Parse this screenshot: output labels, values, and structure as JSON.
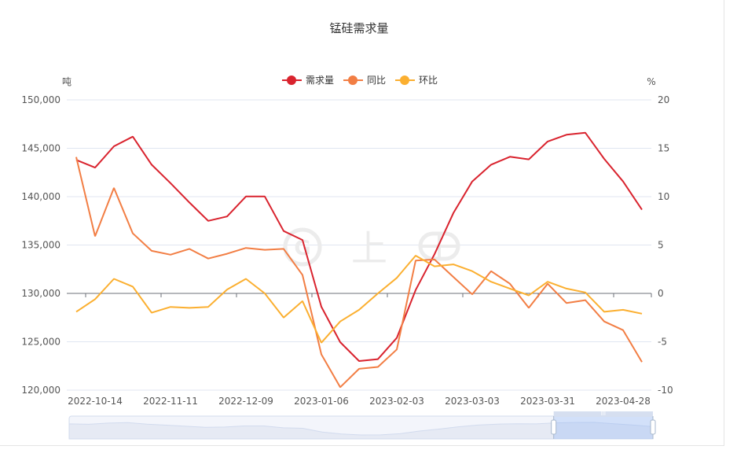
{
  "title": "锰硅需求量",
  "legend": [
    {
      "name": "需求量",
      "color": "#d9232e"
    },
    {
      "name": "同比",
      "color": "#f27e44"
    },
    {
      "name": "环比",
      "color": "#fbaf30"
    }
  ],
  "axes": {
    "left_unit": "吨",
    "right_unit": "%",
    "left_ticks": [
      "150,000",
      "145,000",
      "140,000",
      "135,000",
      "130,000",
      "125,000",
      "120,000"
    ],
    "right_ticks": [
      "20",
      "15",
      "10",
      "5",
      "0",
      "-5",
      "-10"
    ],
    "x_tick_labels": [
      "2022-10-14",
      "2022-11-11",
      "2022-12-09",
      "2023-01-06",
      "2023-02-03",
      "2023-03-03",
      "2023-03-31",
      "2023-04-28"
    ]
  },
  "watermark": "上 ⊖",
  "data_zoom": {
    "start_percent": 83,
    "end_percent": 100
  },
  "chart_data": {
    "type": "line",
    "title": "锰硅需求量",
    "xlabel": "",
    "ylabel": "吨",
    "ylabel_right": "%",
    "ylim": [
      120000,
      150000
    ],
    "ylim_right": [
      -10,
      20
    ],
    "grid": true,
    "legend_position": "top",
    "categories": [
      "2022-10-07",
      "2022-10-14",
      "2022-10-21",
      "2022-10-28",
      "2022-11-04",
      "2022-11-11",
      "2022-11-18",
      "2022-11-25",
      "2022-12-02",
      "2022-12-09",
      "2022-12-16",
      "2022-12-23",
      "2022-12-30",
      "2023-01-06",
      "2023-01-13",
      "2023-01-20",
      "2023-01-27",
      "2023-02-03",
      "2023-02-10",
      "2023-02-17",
      "2023-02-24",
      "2023-03-03",
      "2023-03-10",
      "2023-03-17",
      "2023-03-24",
      "2023-03-31",
      "2023-04-07",
      "2023-04-14",
      "2023-04-21",
      "2023-04-28",
      "2023-05-05"
    ],
    "series": [
      {
        "name": "需求量",
        "axis": "left",
        "color": "#d9232e",
        "values": [
          143800,
          143000,
          145200,
          146200,
          143300,
          141400,
          139400,
          137500,
          137950,
          140020,
          140020,
          136450,
          135520,
          128620,
          124960,
          123010,
          123200,
          125400,
          130350,
          134050,
          138300,
          141570,
          143300,
          144120,
          143850,
          145700,
          146400,
          146600,
          143900,
          141570,
          138650
        ]
      },
      {
        "name": "同比",
        "axis": "right",
        "color": "#f27e44",
        "values": [
          14.1,
          5.9,
          10.9,
          6.2,
          4.4,
          4.0,
          4.6,
          3.6,
          4.1,
          4.7,
          4.5,
          4.6,
          1.9,
          -6.3,
          -9.7,
          -7.8,
          -7.6,
          -5.8,
          3.4,
          3.5,
          1.7,
          -0.1,
          2.3,
          1.0,
          -1.5,
          1.0,
          -1.0,
          -0.7,
          -2.9,
          -3.8,
          -7.1
        ]
      },
      {
        "name": "环比",
        "axis": "right",
        "color": "#fbaf30",
        "values": [
          -1.9,
          -0.6,
          1.5,
          0.7,
          -2.0,
          -1.4,
          -1.5,
          -1.4,
          0.4,
          1.5,
          0.0,
          -2.5,
          -0.8,
          -5.1,
          -2.9,
          -1.7,
          0.0,
          1.6,
          3.9,
          2.8,
          3.0,
          2.3,
          1.2,
          0.5,
          -0.2,
          1.2,
          0.5,
          0.1,
          -1.9,
          -1.7,
          -2.1
        ]
      }
    ]
  }
}
